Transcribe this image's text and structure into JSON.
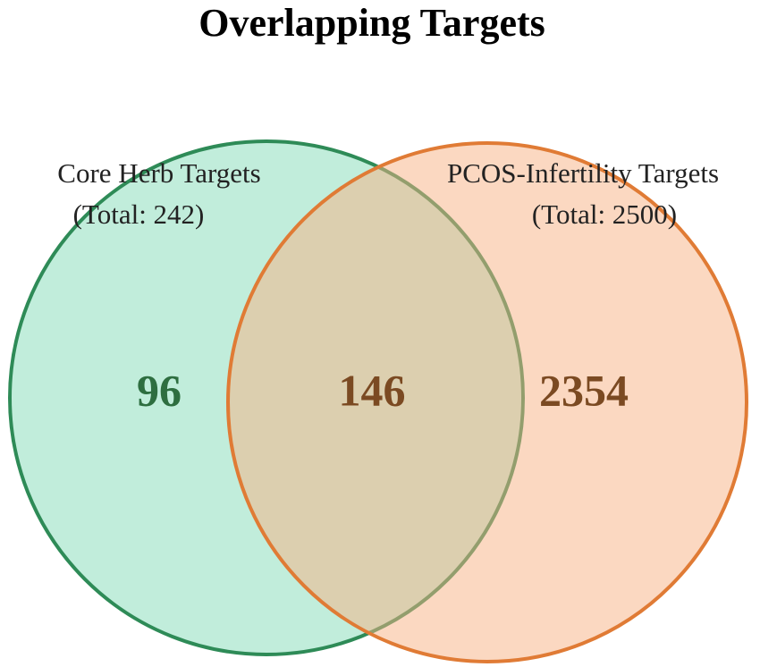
{
  "chart_data": {
    "type": "venn",
    "title": "Overlapping Targets",
    "sets": [
      {
        "name": "Core Herb Targets",
        "total": 242,
        "total_label": "(Total: 242)",
        "color": "#83dcb8",
        "edge": "#2e8b57",
        "count": 96,
        "count_color": "#2e6e40"
      },
      {
        "name": "PCOS-Infertility Targets",
        "total": 2500,
        "total_label": "(Total: 2500)",
        "color": "#f8b183",
        "edge": "#e07b35",
        "count": 2354,
        "count_color": "#7b4a22"
      }
    ],
    "overlap": 146,
    "overlap_color": "#7b4a22"
  }
}
